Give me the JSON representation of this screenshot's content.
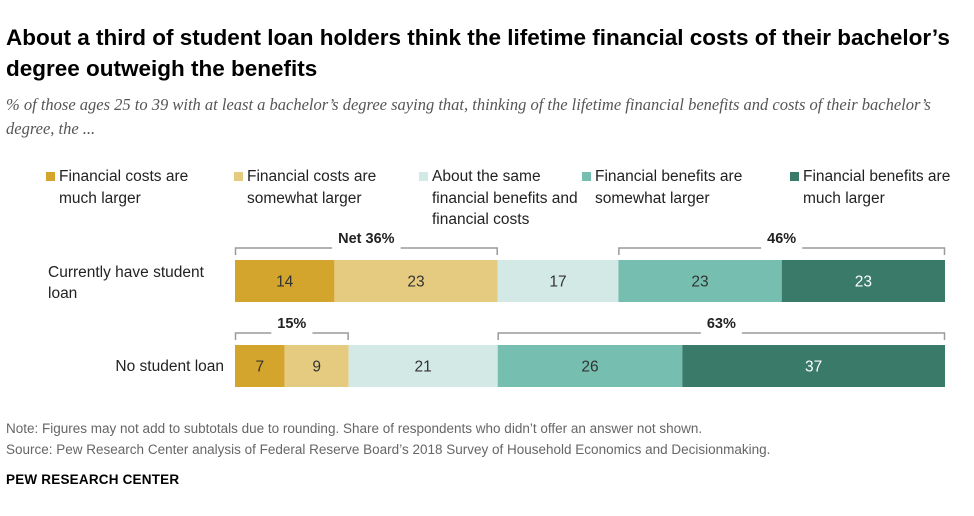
{
  "title": "About a third of student loan holders think the lifetime financial costs of their bachelor’s degree outweigh the benefits",
  "subtitle": "% of those ages 25 to 39 with at least a bachelor’s degree saying that, thinking of the lifetime financial benefits and costs of their bachelor’s degree, the ...",
  "chart_data": {
    "type": "bar",
    "stacked": true,
    "orientation": "horizontal",
    "categories": [
      "Currently have student loan",
      "No student loan"
    ],
    "series": [
      {
        "name": "Financial costs are much larger",
        "color": "#D4A52C",
        "values": [
          14,
          7
        ]
      },
      {
        "name": "Financial costs are somewhat larger",
        "color": "#E5CB80",
        "values": [
          23,
          9
        ]
      },
      {
        "name": "About the same financial benefits and financial costs",
        "color": "#D3E9E5",
        "values": [
          17,
          21
        ]
      },
      {
        "name": "Financial benefits are somewhat larger",
        "color": "#76BFB0",
        "values": [
          23,
          26
        ]
      },
      {
        "name": "Financial benefits are much larger",
        "color": "#3A7A69",
        "values": [
          23,
          37
        ]
      }
    ],
    "nets": [
      {
        "row": 0,
        "from_series": 0,
        "to_series": 1,
        "label": "Net 36%"
      },
      {
        "row": 0,
        "from_series": 3,
        "to_series": 4,
        "label": "46%"
      },
      {
        "row": 1,
        "from_series": 0,
        "to_series": 1,
        "label": "15%"
      },
      {
        "row": 1,
        "from_series": 3,
        "to_series": 4,
        "label": "63%"
      }
    ],
    "xlim": [
      0,
      100
    ],
    "grid": false,
    "legend_position": "top"
  },
  "notes": [
    "Note: Figures may not add to subtotals due to rounding. Share of respondents who didn’t offer an answer not shown.",
    "Source: Pew Research Center analysis of Federal Reserve Board’s 2018 Survey of Household Economics and Decisionmaking."
  ],
  "brand": "PEW RESEARCH CENTER"
}
